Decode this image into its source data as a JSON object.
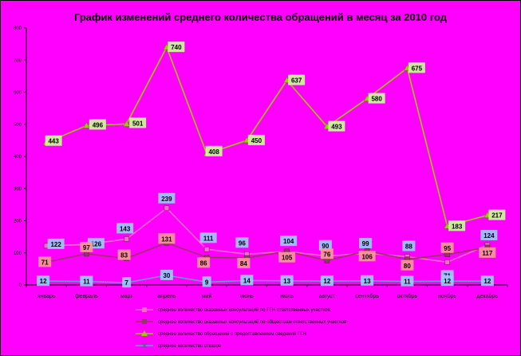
{
  "chart_data": {
    "type": "line",
    "title": "График изменений среднего количества обращений в месяц за 2010 год",
    "categories": [
      "январь",
      "февраль",
      "март",
      "апрель",
      "май",
      "июнь",
      "июль",
      "август",
      "сентябрь",
      "октябрь",
      "ноябрь",
      "декабрь"
    ],
    "ylim": [
      0,
      800
    ],
    "yticks": [
      0,
      100,
      200,
      300,
      400,
      500,
      600,
      700,
      800
    ],
    "grid": false,
    "legend_position": "bottom",
    "series": [
      {
        "name": "среднее количество оказанных консультаций по ГГН ответственных участков",
        "color": "#ff66cc",
        "values": [
          122,
          126,
          143,
          239,
          111,
          96,
          104,
          90,
          99,
          88,
          71,
          124
        ]
      },
      {
        "name": "среднее количество оказанных консультаций по обществам ответственных участков",
        "color": "#993366",
        "values": [
          71,
          97,
          83,
          131,
          86,
          84,
          105,
          76,
          106,
          80,
          95,
          117
        ]
      },
      {
        "name": "среднее количество обращений с предоставлением сведений ГГН",
        "color": "#99cc00",
        "values": [
          443,
          496,
          501,
          740,
          408,
          450,
          637,
          493,
          580,
          675,
          183,
          217
        ]
      },
      {
        "name": "среднее количество отказов",
        "color": "#6699cc",
        "values": [
          12,
          11,
          7,
          30,
          9,
          14,
          13,
          12,
          13,
          11,
          12,
          12
        ]
      }
    ]
  }
}
